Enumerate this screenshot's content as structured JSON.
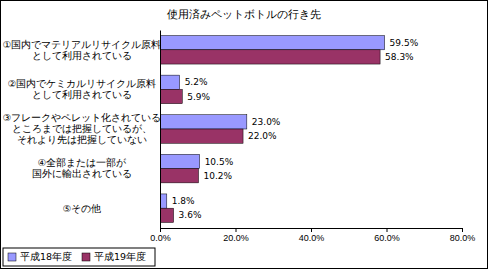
{
  "chart_data": {
    "type": "bar",
    "title": "使用済みペットボトルの行き先",
    "orientation": "horizontal",
    "categories": [
      "①国内でマテリアルリサイクル原料\nとして利用されている",
      "②国内でケミカルリサイクル原料\nとして利用されている",
      "③フレークやペレット化されている\nところまでは把握しているが、\nそれより先は把握していない",
      "④全部または一部が\n国外に輸出されている",
      "⑤その他"
    ],
    "series": [
      {
        "name": "平成18年度",
        "color": "#9999ff",
        "values": [
          59.5,
          5.2,
          23.0,
          10.5,
          1.8
        ],
        "value_labels": [
          "59.5%",
          "5.2%",
          "23.0%",
          "10.5%",
          "1.8%"
        ]
      },
      {
        "name": "平成19年度",
        "color": "#993366",
        "values": [
          58.3,
          5.9,
          22.0,
          10.2,
          3.6
        ],
        "value_labels": [
          "58.3%",
          "5.9%",
          "22.0%",
          "10.2%",
          "3.6%"
        ]
      }
    ],
    "xlim": [
      0,
      80
    ],
    "xticks": [
      {
        "value": 0,
        "label": "0.0%"
      },
      {
        "value": 20,
        "label": "20.0%"
      },
      {
        "value": 40,
        "label": "40.0%"
      },
      {
        "value": 60,
        "label": "60.0%"
      },
      {
        "value": 80,
        "label": "80.0%"
      }
    ],
    "grid": false,
    "data_labels": true,
    "legend": "bottom-left"
  }
}
